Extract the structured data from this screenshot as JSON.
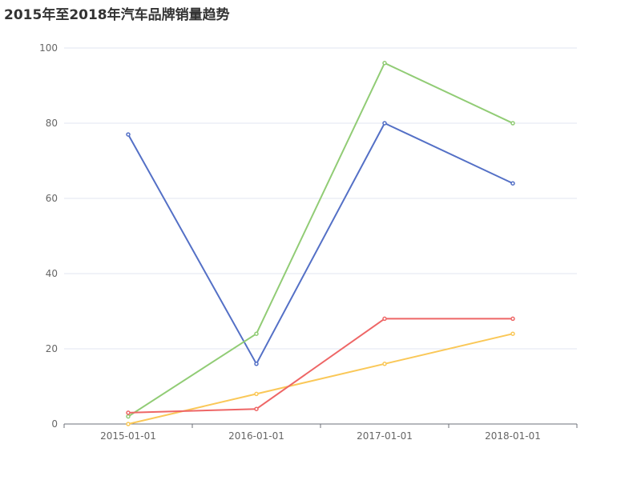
{
  "chart_data": {
    "type": "line",
    "title": "2015年至2018年汽车品牌销量趋势",
    "categories": [
      "2015-01-01",
      "2016-01-01",
      "2017-01-01",
      "2018-01-01"
    ],
    "ylim": [
      0,
      100
    ],
    "yticks": [
      0,
      20,
      40,
      60,
      80,
      100
    ],
    "grid": true,
    "series": [
      {
        "color": "#5470c6",
        "values": [
          77,
          16,
          80,
          64
        ]
      },
      {
        "color": "#91cc75",
        "values": [
          2,
          24,
          96,
          80
        ]
      },
      {
        "color": "#fac858",
        "values": [
          0,
          8,
          16,
          24
        ]
      },
      {
        "color": "#ee6666",
        "values": [
          3,
          4,
          28,
          28
        ]
      }
    ]
  }
}
